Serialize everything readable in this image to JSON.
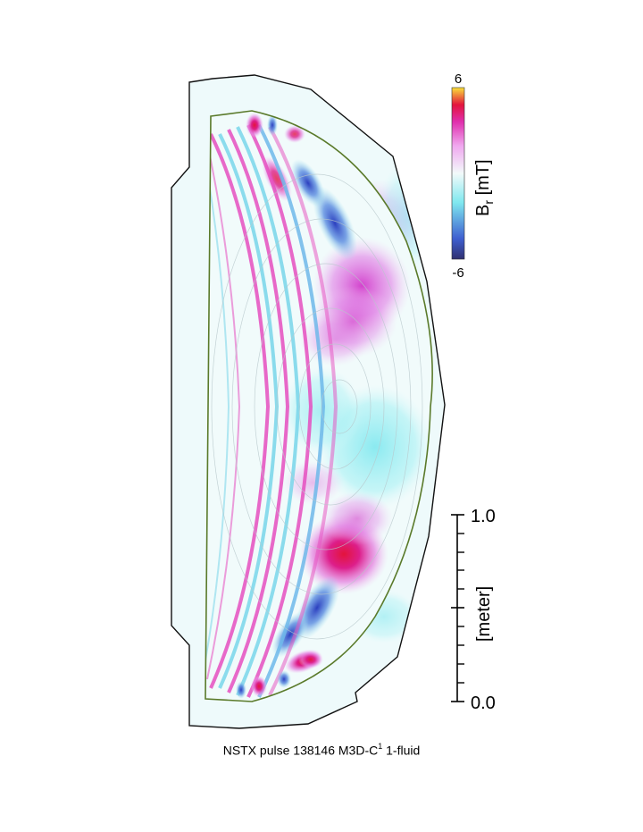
{
  "colorbar": {
    "label_main": "B",
    "label_sub": "r",
    "label_unit": " [mT]",
    "max": "6",
    "min": "-6",
    "colors": [
      "#303070",
      "#3f5fd0",
      "#7fe8ef",
      "#f2fafa",
      "#f0a8ef",
      "#e02fae",
      "#e3143c",
      "#f9e13a"
    ]
  },
  "scalebar": {
    "top_label": "1.0",
    "bottom_label": "0.0",
    "unit_label": "[meter]"
  },
  "caption": {
    "prefix": "NSTX pulse 138146  M3D-C",
    "superscript": "1",
    "suffix": " 1-fluid"
  }
}
